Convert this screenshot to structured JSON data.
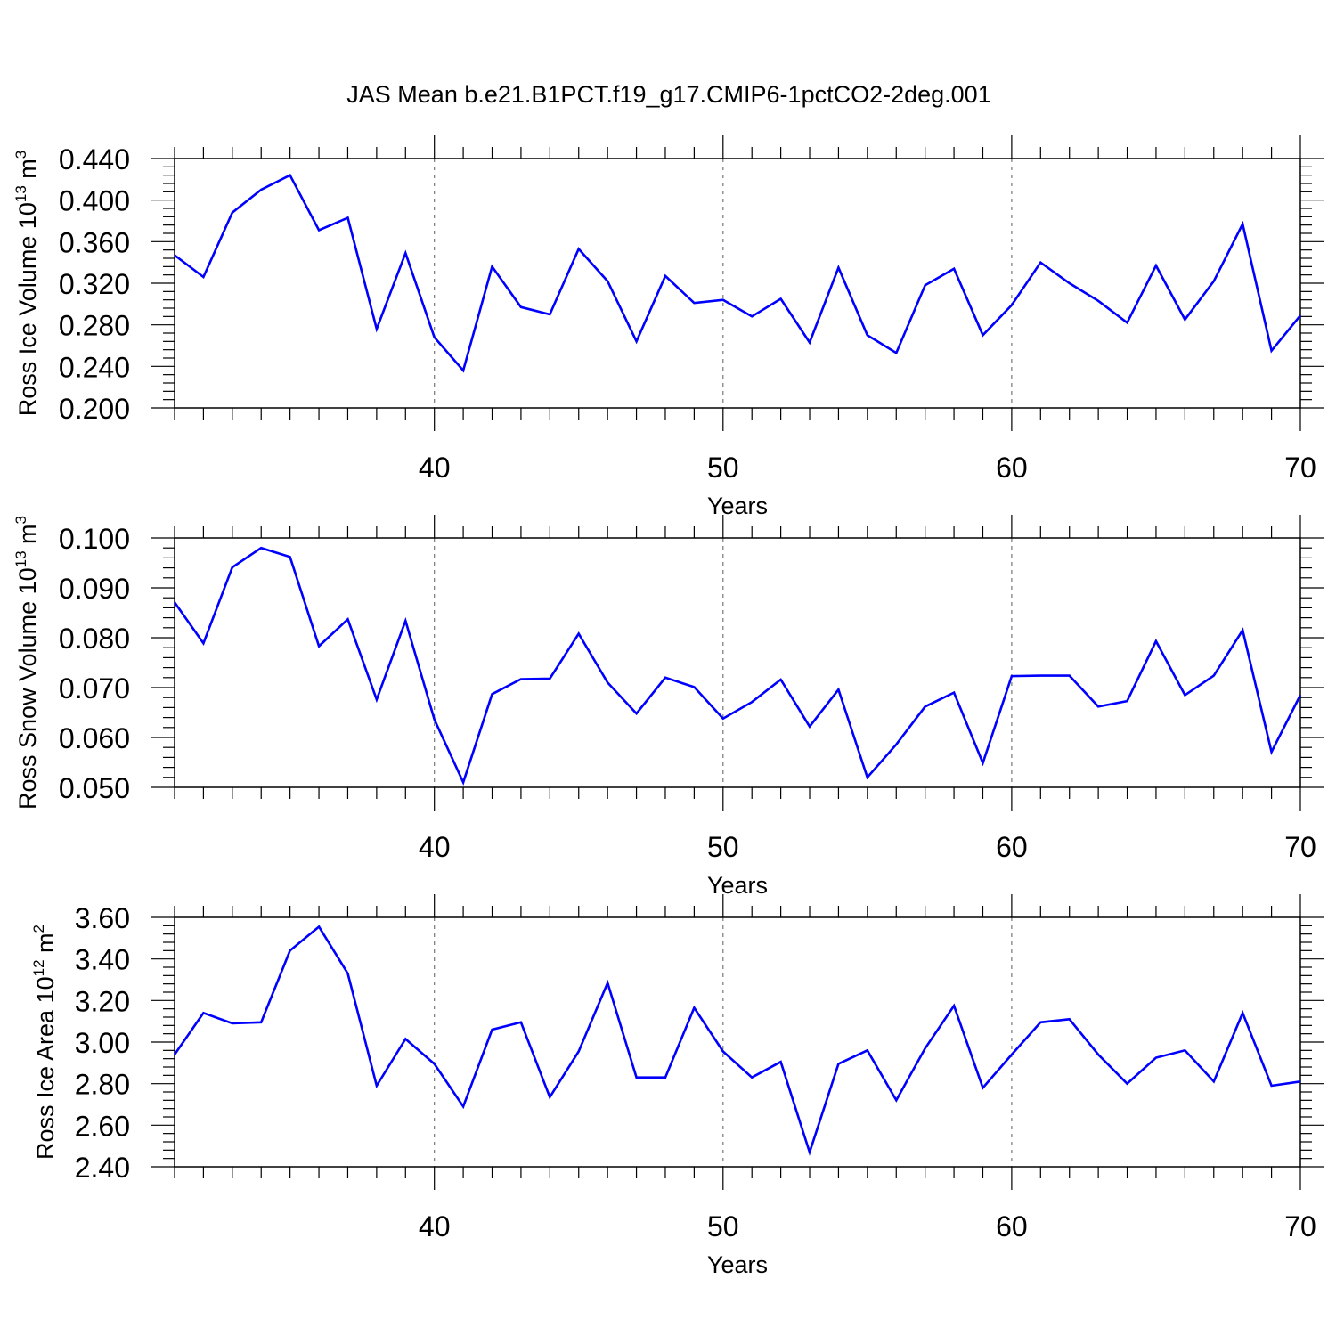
{
  "title": "JAS Mean b.e21.B1PCT.f19_g17.CMIP6-1pctCO2-2deg.001",
  "colors": {
    "line": "#0000ff",
    "axes": "#000000",
    "grid": "#777777"
  },
  "chart_data": [
    {
      "type": "line",
      "xlabel": "Years",
      "ylabel": {
        "text": "Ross Ice Volume 10",
        "exponent": "13",
        "unit": " m",
        "unit_exponent": "3"
      },
      "xlim": [
        31,
        70
      ],
      "ylim": [
        0.2,
        0.44
      ],
      "xticks": [
        40,
        50,
        60,
        70
      ],
      "xtick_labels": [
        "40",
        "50",
        "60",
        "70"
      ],
      "yticks": [
        0.2,
        0.24,
        0.28,
        0.32,
        0.36,
        0.4,
        0.44
      ],
      "ytick_labels": [
        "0.200",
        "0.240",
        "0.280",
        "0.320",
        "0.360",
        "0.400",
        "0.440"
      ],
      "grid": "vertical dashed at major x ticks",
      "x": [
        31,
        32,
        33,
        34,
        35,
        36,
        37,
        38,
        39,
        40,
        41,
        42,
        43,
        44,
        45,
        46,
        47,
        48,
        49,
        50,
        51,
        52,
        53,
        54,
        55,
        56,
        57,
        58,
        59,
        60,
        61,
        62,
        63,
        64,
        65,
        66,
        67,
        68,
        69,
        70
      ],
      "values": [
        0.347,
        0.326,
        0.388,
        0.41,
        0.424,
        0.371,
        0.383,
        0.276,
        0.349,
        0.268,
        0.236,
        0.336,
        0.297,
        0.29,
        0.353,
        0.322,
        0.264,
        0.327,
        0.301,
        0.304,
        0.288,
        0.305,
        0.263,
        0.335,
        0.27,
        0.253,
        0.318,
        0.334,
        0.27,
        0.299,
        0.34,
        0.32,
        0.303,
        0.282,
        0.337,
        0.285,
        0.322,
        0.377,
        0.255,
        0.289
      ]
    },
    {
      "type": "line",
      "xlabel": "Years",
      "ylabel": {
        "text": "Ross Snow Volume 10",
        "exponent": "13",
        "unit": " m",
        "unit_exponent": "3"
      },
      "xlim": [
        31,
        70
      ],
      "ylim": [
        0.05,
        0.1
      ],
      "xticks": [
        40,
        50,
        60,
        70
      ],
      "xtick_labels": [
        "40",
        "50",
        "60",
        "70"
      ],
      "yticks": [
        0.05,
        0.06,
        0.07,
        0.08,
        0.09,
        0.1
      ],
      "ytick_labels": [
        "0.050",
        "0.060",
        "0.070",
        "0.080",
        "0.090",
        "0.100"
      ],
      "grid": "vertical dashed at major x ticks",
      "x": [
        31,
        32,
        33,
        34,
        35,
        36,
        37,
        38,
        39,
        40,
        41,
        42,
        43,
        44,
        45,
        46,
        47,
        48,
        49,
        50,
        51,
        52,
        53,
        54,
        55,
        56,
        57,
        58,
        59,
        60,
        61,
        62,
        63,
        64,
        65,
        66,
        67,
        68,
        69,
        70
      ],
      "values": [
        0.0871,
        0.0789,
        0.0941,
        0.098,
        0.0962,
        0.0783,
        0.0837,
        0.0676,
        0.0834,
        0.0636,
        0.051,
        0.0687,
        0.0717,
        0.0718,
        0.0808,
        0.071,
        0.0648,
        0.072,
        0.0701,
        0.0638,
        0.0671,
        0.0716,
        0.0622,
        0.0696,
        0.052,
        0.0586,
        0.0662,
        0.069,
        0.0549,
        0.0723,
        0.0724,
        0.0724,
        0.0662,
        0.0673,
        0.0793,
        0.0685,
        0.0724,
        0.0815,
        0.0571,
        0.0685
      ]
    },
    {
      "type": "line",
      "xlabel": "Years",
      "ylabel": {
        "text": "Ross Ice Area 10",
        "exponent": "12",
        "unit": " m",
        "unit_exponent": "2"
      },
      "xlim": [
        31,
        70
      ],
      "ylim": [
        2.4,
        3.6
      ],
      "xticks": [
        40,
        50,
        60,
        70
      ],
      "xtick_labels": [
        "40",
        "50",
        "60",
        "70"
      ],
      "yticks": [
        2.4,
        2.6,
        2.8,
        3.0,
        3.2,
        3.4,
        3.6
      ],
      "ytick_labels": [
        "2.40",
        "2.60",
        "2.80",
        "3.00",
        "3.20",
        "3.40",
        "3.60"
      ],
      "grid": "vertical dashed at major x ticks",
      "x": [
        31,
        32,
        33,
        34,
        35,
        36,
        37,
        38,
        39,
        40,
        41,
        42,
        43,
        44,
        45,
        46,
        47,
        48,
        49,
        50,
        51,
        52,
        53,
        54,
        55,
        56,
        57,
        58,
        59,
        60,
        61,
        62,
        63,
        64,
        65,
        66,
        67,
        68,
        69,
        70
      ],
      "values": [
        2.94,
        3.14,
        3.09,
        3.095,
        3.44,
        3.555,
        3.33,
        2.79,
        3.015,
        2.895,
        2.69,
        3.06,
        3.095,
        2.735,
        2.955,
        3.285,
        2.83,
        2.83,
        3.165,
        2.955,
        2.83,
        2.905,
        2.47,
        2.895,
        2.96,
        2.72,
        2.97,
        3.175,
        2.78,
        2.94,
        3.095,
        3.11,
        2.94,
        2.8,
        2.925,
        2.96,
        2.81,
        3.14,
        2.79,
        2.81
      ]
    }
  ]
}
